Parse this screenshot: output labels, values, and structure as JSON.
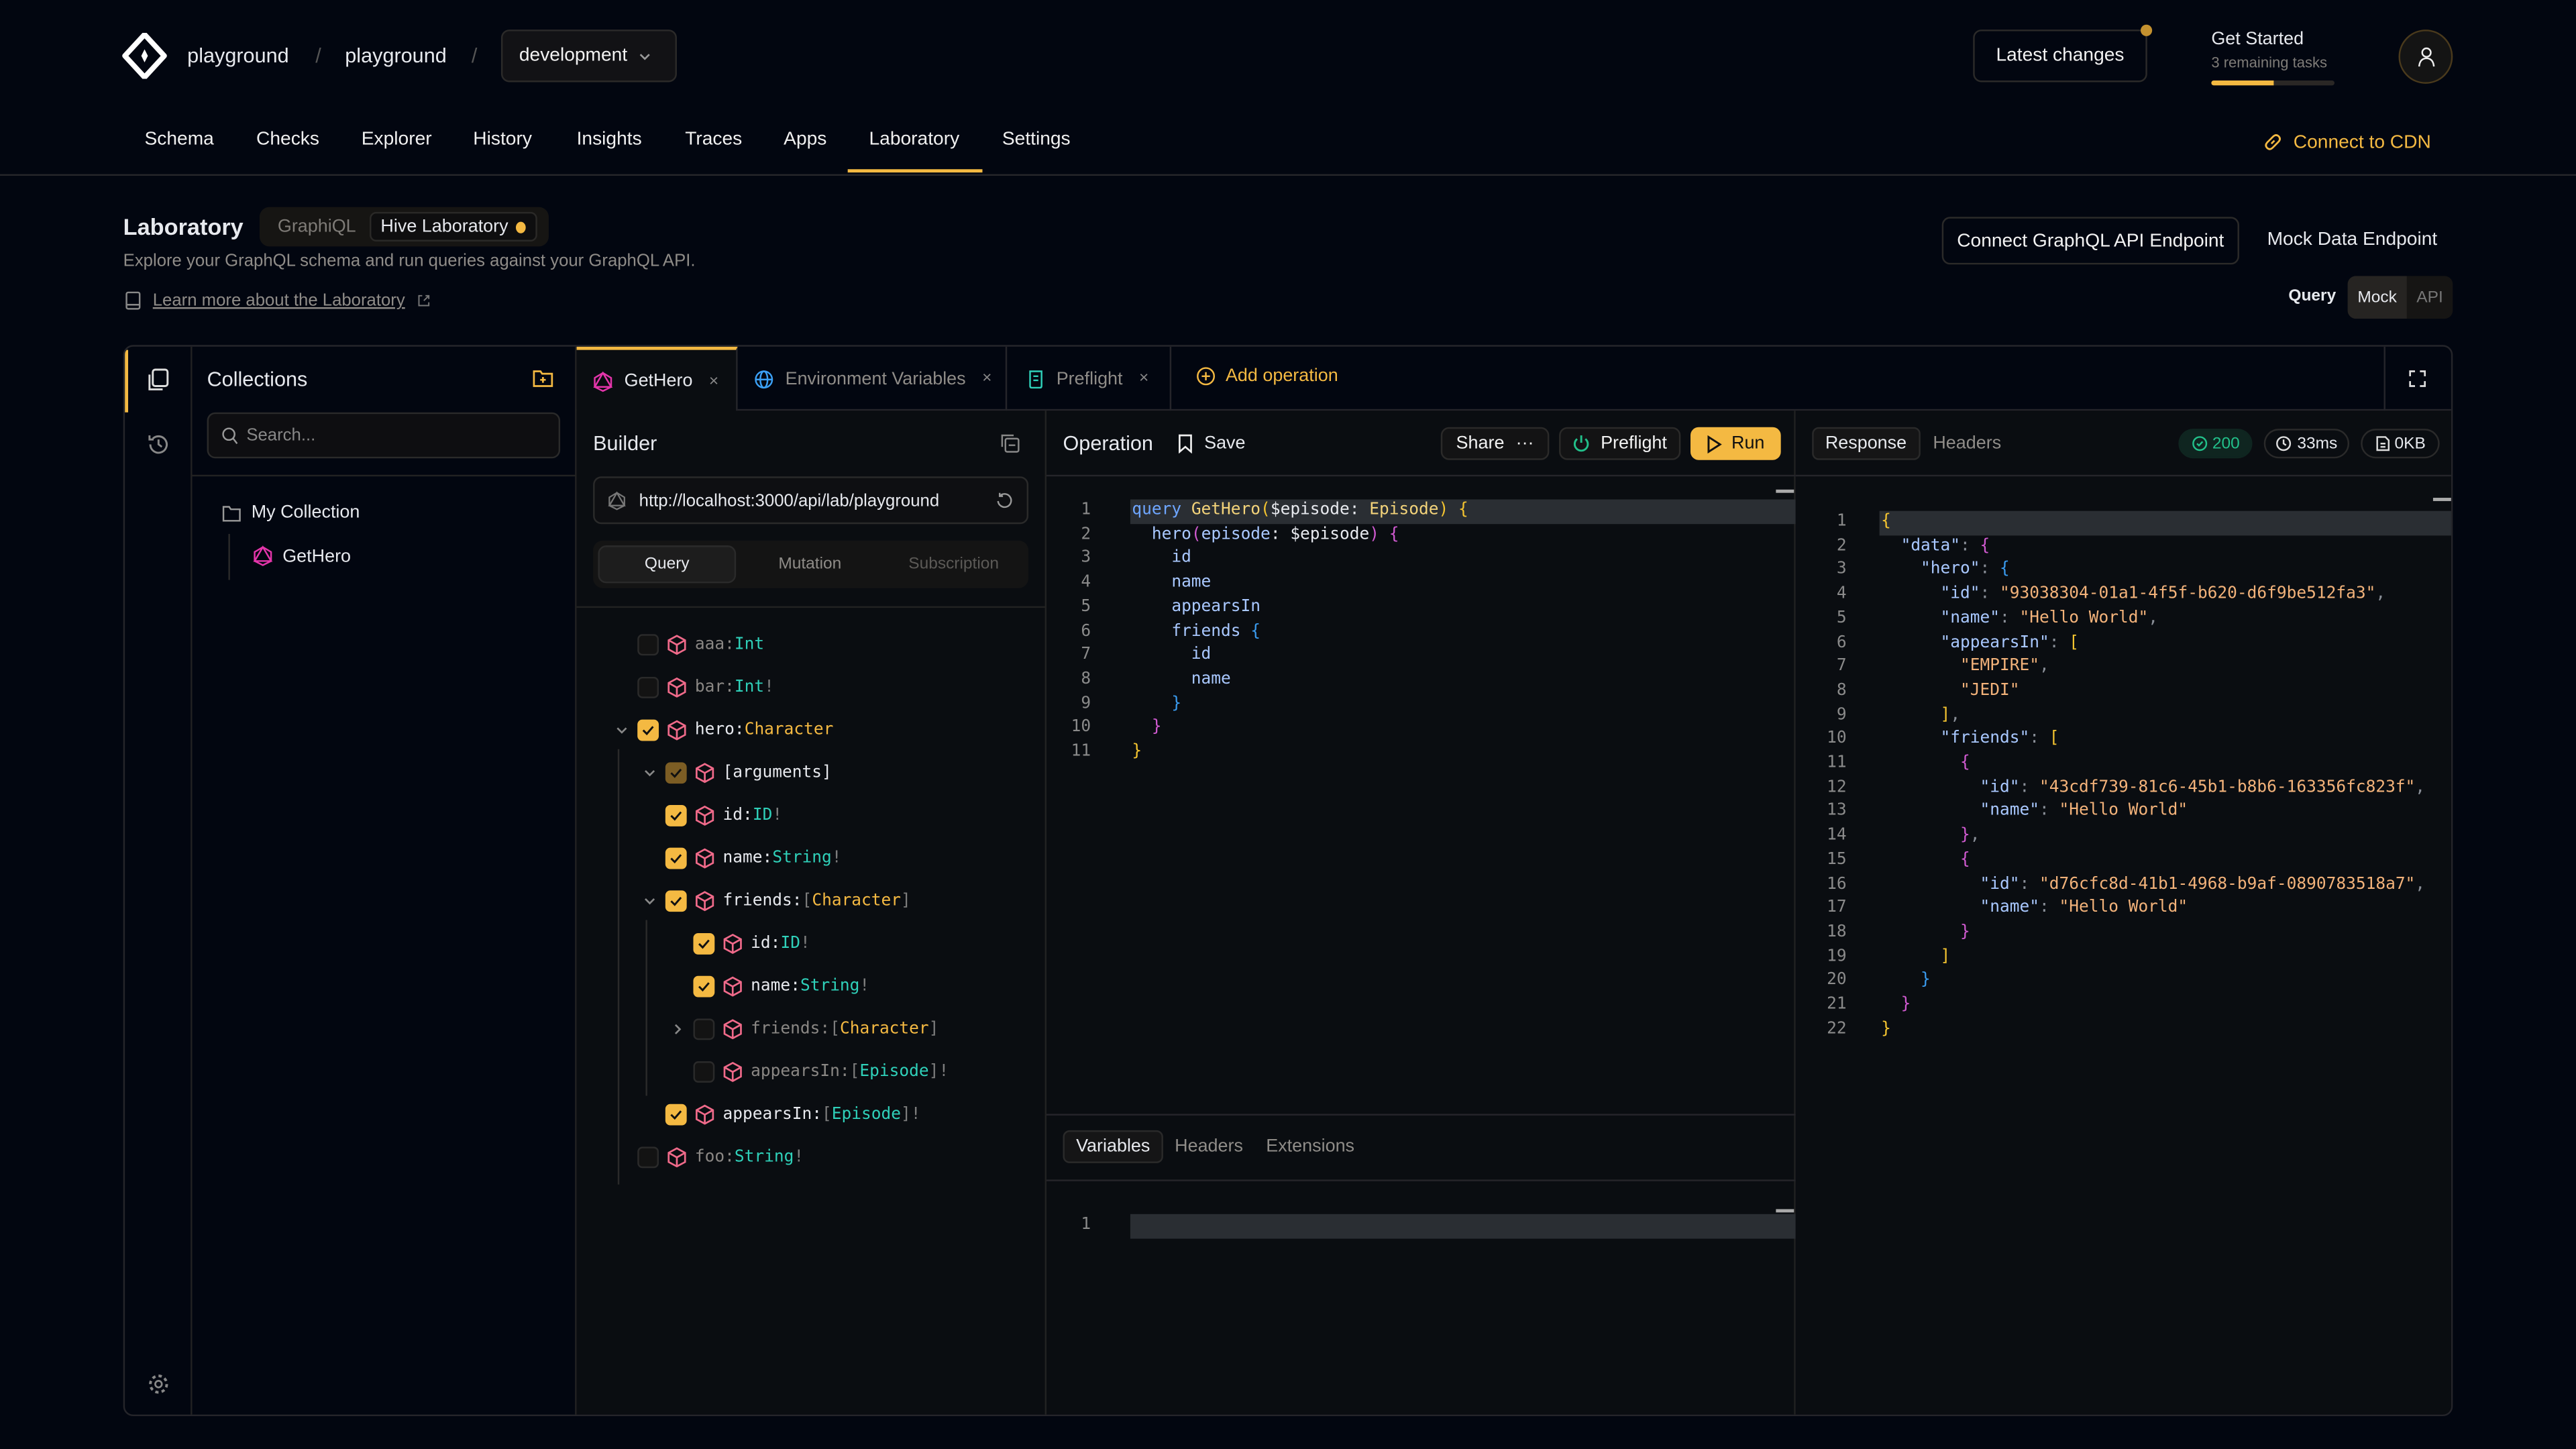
{
  "colors": {
    "accent": "#f4b942",
    "background": "#020610",
    "panel": "#0a0d11",
    "success": "#22c08a",
    "graphql_pink": "#e535ab",
    "type_scalar": "#2fd0b9"
  },
  "header": {
    "breadcrumb": [
      "playground",
      "playground"
    ],
    "separator": "/",
    "environment": "development",
    "latest_changes": "Latest changes",
    "get_started": {
      "title": "Get Started",
      "subtitle": "3 remaining tasks",
      "progress": 0.5
    },
    "avatar_icon": "user-icon"
  },
  "nav": {
    "tabs": [
      "Schema",
      "Checks",
      "Explorer",
      "History",
      "Insights",
      "Traces",
      "Apps",
      "Laboratory",
      "Settings"
    ],
    "active": "Laboratory",
    "connect_cdn": "Connect to CDN"
  },
  "page": {
    "title": "Laboratory",
    "modes": [
      "GraphiQL",
      "Hive Laboratory"
    ],
    "active_mode": "Hive Laboratory",
    "description": "Explore your GraphQL schema and run queries against your GraphQL API.",
    "learn_more": "Learn more about the Laboratory",
    "connect_endpoint": "Connect GraphQL API Endpoint",
    "mock_endpoint": "Mock Data Endpoint",
    "query_label": "Query",
    "query_toggle": [
      "Mock",
      "API"
    ],
    "query_toggle_active": "Mock"
  },
  "collections": {
    "title": "Collections",
    "search_placeholder": "Search...",
    "folder": "My Collection",
    "items": [
      "GetHero"
    ]
  },
  "tabs": [
    {
      "label": "GetHero",
      "icon": "graphql-icon",
      "active": true
    },
    {
      "label": "Environment Variables",
      "icon": "globe-icon",
      "active": false
    },
    {
      "label": "Preflight",
      "icon": "script-icon",
      "active": false
    }
  ],
  "add_operation": "Add operation",
  "builder": {
    "title": "Builder",
    "url": "http://localhost:3000/api/lab/playground",
    "op_types": [
      "Query",
      "Mutation",
      "Subscription"
    ],
    "active_op_type": "Query",
    "fields": [
      {
        "depth": 0,
        "name": "aaa",
        "type": "Int",
        "kind": "scalar",
        "list": false,
        "nonnull": false,
        "state": "unchecked",
        "expander": "none"
      },
      {
        "depth": 0,
        "name": "bar",
        "type": "Int",
        "kind": "scalar",
        "list": false,
        "nonnull": true,
        "state": "unchecked",
        "expander": "none"
      },
      {
        "depth": 0,
        "name": "hero",
        "type": "Character",
        "kind": "object",
        "list": false,
        "nonnull": false,
        "state": "checked",
        "expander": "open"
      },
      {
        "depth": 1,
        "name": "[arguments]",
        "type": "",
        "kind": "",
        "list": false,
        "nonnull": false,
        "state": "partial",
        "expander": "open"
      },
      {
        "depth": 1,
        "name": "id",
        "type": "ID",
        "kind": "scalar",
        "list": false,
        "nonnull": true,
        "state": "checked",
        "expander": "none"
      },
      {
        "depth": 1,
        "name": "name",
        "type": "String",
        "kind": "scalar",
        "list": false,
        "nonnull": true,
        "state": "checked",
        "expander": "none"
      },
      {
        "depth": 1,
        "name": "friends",
        "type": "Character",
        "kind": "object",
        "list": true,
        "nonnull": false,
        "state": "checked",
        "expander": "open"
      },
      {
        "depth": 2,
        "name": "id",
        "type": "ID",
        "kind": "scalar",
        "list": false,
        "nonnull": true,
        "state": "checked",
        "expander": "none"
      },
      {
        "depth": 2,
        "name": "name",
        "type": "String",
        "kind": "scalar",
        "list": false,
        "nonnull": true,
        "state": "checked",
        "expander": "none"
      },
      {
        "depth": 2,
        "name": "friends",
        "type": "Character",
        "kind": "object",
        "list": true,
        "nonnull": false,
        "state": "unchecked",
        "expander": "closed"
      },
      {
        "depth": 2,
        "name": "appearsIn",
        "type": "Episode",
        "kind": "scalar",
        "list": true,
        "nonnull": true,
        "state": "unchecked",
        "expander": "none"
      },
      {
        "depth": 1,
        "name": "appearsIn",
        "type": "Episode",
        "kind": "scalar",
        "list": true,
        "nonnull": true,
        "state": "checked",
        "expander": "none"
      },
      {
        "depth": 0,
        "name": "foo",
        "type": "String",
        "kind": "scalar",
        "list": false,
        "nonnull": true,
        "state": "unchecked",
        "expander": "none"
      }
    ]
  },
  "operation": {
    "title": "Operation",
    "save": "Save",
    "share": "Share",
    "preflight": "Preflight",
    "run": "Run",
    "code": [
      [
        {
          "t": "query ",
          "c": "kw"
        },
        {
          "t": "GetHero",
          "c": "fn"
        },
        {
          "t": "(",
          "c": "py"
        },
        {
          "t": "$episode: ",
          "c": "var"
        },
        {
          "t": "Episode",
          "c": "fn"
        },
        {
          "t": ") ",
          "c": "py"
        },
        {
          "t": "{",
          "c": "py"
        }
      ],
      [
        {
          "t": "  hero",
          "c": "fld"
        },
        {
          "t": "(",
          "c": "pp"
        },
        {
          "t": "episode",
          "c": "fld"
        },
        {
          "t": ": $episode",
          "c": "var"
        },
        {
          "t": ") ",
          "c": "pp"
        },
        {
          "t": "{",
          "c": "pp"
        }
      ],
      [
        {
          "t": "    id",
          "c": "fld"
        }
      ],
      [
        {
          "t": "    name",
          "c": "fld"
        }
      ],
      [
        {
          "t": "    appearsIn",
          "c": "fld"
        }
      ],
      [
        {
          "t": "    friends ",
          "c": "fld"
        },
        {
          "t": "{",
          "c": "pb"
        }
      ],
      [
        {
          "t": "      id",
          "c": "fld"
        }
      ],
      [
        {
          "t": "      name",
          "c": "fld"
        }
      ],
      [
        {
          "t": "    }",
          "c": "pb"
        }
      ],
      [
        {
          "t": "  }",
          "c": "pp"
        }
      ],
      [
        {
          "t": "}",
          "c": "py"
        }
      ]
    ],
    "bottom_tabs": [
      "Variables",
      "Headers",
      "Extensions"
    ],
    "bottom_active": "Variables",
    "variables": [
      [
        {
          "t": "",
          "c": "var"
        }
      ]
    ]
  },
  "response": {
    "tabs": [
      "Response",
      "Headers"
    ],
    "active": "Response",
    "status": "200",
    "time": "33ms",
    "size": "0KB",
    "code": [
      [
        {
          "t": "{",
          "c": "py"
        }
      ],
      [
        {
          "t": "  \"data\"",
          "c": "key"
        },
        {
          "t": ": ",
          "c": "punc"
        },
        {
          "t": "{",
          "c": "pp"
        }
      ],
      [
        {
          "t": "    \"hero\"",
          "c": "key"
        },
        {
          "t": ": ",
          "c": "punc"
        },
        {
          "t": "{",
          "c": "pb"
        }
      ],
      [
        {
          "t": "      \"id\"",
          "c": "key"
        },
        {
          "t": ": ",
          "c": "punc"
        },
        {
          "t": "\"93038304-01a1-4f5f-b620-d6f9be512fa3\"",
          "c": "str"
        },
        {
          "t": ",",
          "c": "punc"
        }
      ],
      [
        {
          "t": "      \"name\"",
          "c": "key"
        },
        {
          "t": ": ",
          "c": "punc"
        },
        {
          "t": "\"Hello World\"",
          "c": "str"
        },
        {
          "t": ",",
          "c": "punc"
        }
      ],
      [
        {
          "t": "      \"appearsIn\"",
          "c": "key"
        },
        {
          "t": ": ",
          "c": "punc"
        },
        {
          "t": "[",
          "c": "py"
        }
      ],
      [
        {
          "t": "        \"EMPIRE\"",
          "c": "str"
        },
        {
          "t": ",",
          "c": "punc"
        }
      ],
      [
        {
          "t": "        \"JEDI\"",
          "c": "str"
        }
      ],
      [
        {
          "t": "      ]",
          "c": "py"
        },
        {
          "t": ",",
          "c": "punc"
        }
      ],
      [
        {
          "t": "      \"friends\"",
          "c": "key"
        },
        {
          "t": ": ",
          "c": "punc"
        },
        {
          "t": "[",
          "c": "py"
        }
      ],
      [
        {
          "t": "        {",
          "c": "pp"
        }
      ],
      [
        {
          "t": "          \"id\"",
          "c": "key"
        },
        {
          "t": ": ",
          "c": "punc"
        },
        {
          "t": "\"43cdf739-81c6-45b1-b8b6-163356fc823f\"",
          "c": "str"
        },
        {
          "t": ",",
          "c": "punc"
        }
      ],
      [
        {
          "t": "          \"name\"",
          "c": "key"
        },
        {
          "t": ": ",
          "c": "punc"
        },
        {
          "t": "\"Hello World\"",
          "c": "str"
        }
      ],
      [
        {
          "t": "        }",
          "c": "pp"
        },
        {
          "t": ",",
          "c": "punc"
        }
      ],
      [
        {
          "t": "        {",
          "c": "pp"
        }
      ],
      [
        {
          "t": "          \"id\"",
          "c": "key"
        },
        {
          "t": ": ",
          "c": "punc"
        },
        {
          "t": "\"d76cfc8d-41b1-4968-b9af-0890783518a7\"",
          "c": "str"
        },
        {
          "t": ",",
          "c": "punc"
        }
      ],
      [
        {
          "t": "          \"name\"",
          "c": "key"
        },
        {
          "t": ": ",
          "c": "punc"
        },
        {
          "t": "\"Hello World\"",
          "c": "str"
        }
      ],
      [
        {
          "t": "        }",
          "c": "pp"
        }
      ],
      [
        {
          "t": "      ]",
          "c": "py"
        }
      ],
      [
        {
          "t": "    }",
          "c": "pb"
        }
      ],
      [
        {
          "t": "  }",
          "c": "pp"
        }
      ],
      [
        {
          "t": "}",
          "c": "py"
        }
      ]
    ]
  }
}
